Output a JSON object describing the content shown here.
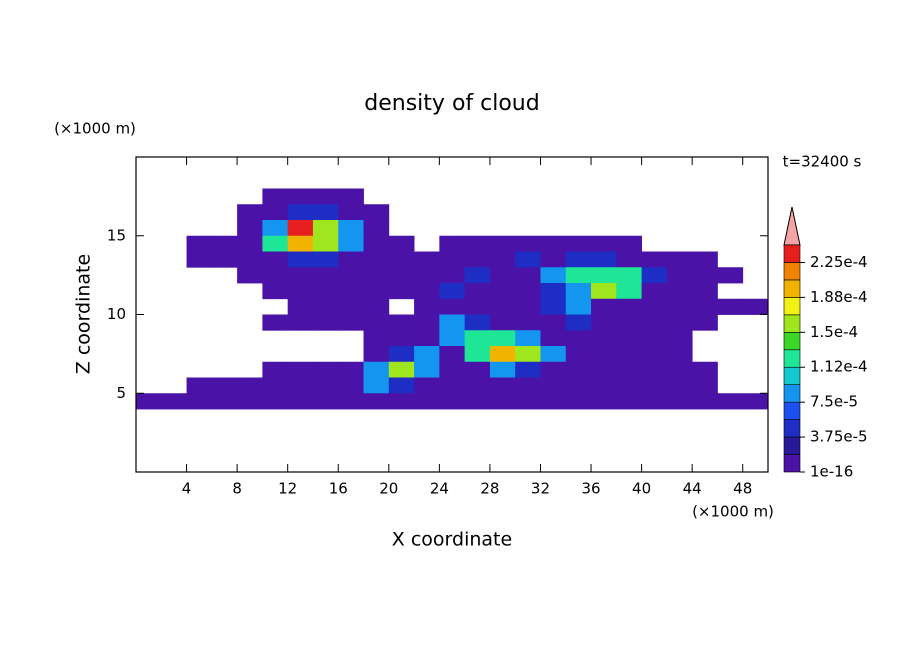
{
  "chart_data": {
    "type": "contour",
    "title": "density of cloud",
    "time_label": "t=32400 s",
    "xlabel": "X coordinate",
    "ylabel": "Z coordinate",
    "x_unit": "(×1000 m)",
    "y_unit": "(×1000 m)",
    "xlim": [
      0,
      50
    ],
    "ylim": [
      0,
      20
    ],
    "xticks": [
      4,
      8,
      12,
      16,
      20,
      24,
      28,
      32,
      36,
      40,
      44,
      48
    ],
    "yticks": [
      5,
      10,
      15
    ],
    "x": [
      1,
      3,
      5,
      7,
      9,
      11,
      13,
      15,
      17,
      19,
      21,
      23,
      25,
      27,
      29,
      31,
      33,
      35,
      37,
      39,
      41,
      43,
      45,
      47,
      49
    ],
    "z": [
      17.5,
      16.5,
      15.5,
      14.5,
      13.5,
      12.5,
      11.5,
      10.5,
      9.5,
      8.5,
      7.5,
      6.5,
      5.5,
      4.5
    ],
    "values": [
      [
        0,
        0,
        0,
        0,
        0,
        1e-05,
        1e-05,
        1e-05,
        1e-05,
        0,
        0,
        0,
        0,
        0,
        0,
        0,
        0,
        0,
        0,
        0,
        0,
        0,
        0,
        0,
        0
      ],
      [
        0,
        0,
        0,
        0,
        1e-05,
        1e-05,
        4e-05,
        4e-05,
        1e-05,
        1e-05,
        0,
        0,
        0,
        0,
        0,
        0,
        0,
        0,
        0,
        0,
        0,
        0,
        0,
        0,
        0
      ],
      [
        0,
        0,
        0,
        0,
        1e-05,
        8e-05,
        0.00023,
        0.00016,
        8e-05,
        1e-05,
        0,
        0,
        0,
        0,
        0,
        0,
        0,
        0,
        0,
        0,
        0,
        0,
        0,
        0,
        0
      ],
      [
        0,
        0,
        1e-05,
        1e-05,
        1e-05,
        0.00012,
        0.0002,
        0.00016,
        8e-05,
        1e-05,
        1e-05,
        0,
        1e-05,
        1e-05,
        1e-05,
        1e-05,
        1e-05,
        1e-05,
        1e-05,
        1e-05,
        0,
        0,
        0,
        0,
        0
      ],
      [
        0,
        0,
        1e-05,
        1e-05,
        1e-05,
        1e-05,
        4e-05,
        4e-05,
        1e-05,
        1e-05,
        1e-05,
        1e-05,
        1e-05,
        1e-05,
        1e-05,
        4e-05,
        1e-05,
        4e-05,
        4e-05,
        1e-05,
        1e-05,
        1e-05,
        1e-05,
        0,
        0
      ],
      [
        0,
        0,
        0,
        0,
        1e-05,
        1e-05,
        1e-05,
        1e-05,
        1e-05,
        1e-05,
        1e-05,
        1e-05,
        1e-05,
        4e-05,
        1e-05,
        1e-05,
        8e-05,
        0.00012,
        0.00012,
        0.00012,
        4e-05,
        1e-05,
        1e-05,
        1e-05,
        0
      ],
      [
        0,
        0,
        0,
        0,
        0,
        1e-05,
        1e-05,
        1e-05,
        1e-05,
        1e-05,
        1e-05,
        1e-05,
        4e-05,
        1e-05,
        1e-05,
        1e-05,
        4e-05,
        8e-05,
        0.00016,
        0.00012,
        1e-05,
        1e-05,
        1e-05,
        0,
        0
      ],
      [
        0,
        0,
        0,
        0,
        0,
        0,
        1e-05,
        1e-05,
        1e-05,
        1e-05,
        0,
        1e-05,
        1e-05,
        1e-05,
        1e-05,
        1e-05,
        4e-05,
        8e-05,
        1e-05,
        1e-05,
        1e-05,
        1e-05,
        1e-05,
        1e-05,
        1e-05
      ],
      [
        0,
        0,
        0,
        0,
        0,
        1e-05,
        1e-05,
        1e-05,
        1e-05,
        1e-05,
        1e-05,
        1e-05,
        8e-05,
        4e-05,
        1e-05,
        1e-05,
        1e-05,
        4e-05,
        1e-05,
        1e-05,
        1e-05,
        1e-05,
        1e-05,
        0,
        0
      ],
      [
        0,
        0,
        0,
        0,
        0,
        0,
        0,
        0,
        0,
        1e-05,
        1e-05,
        1e-05,
        8e-05,
        0.00012,
        0.00012,
        8e-05,
        1e-05,
        1e-05,
        1e-05,
        1e-05,
        1e-05,
        1e-05,
        0,
        0,
        0
      ],
      [
        0,
        0,
        0,
        0,
        0,
        0,
        0,
        0,
        0,
        1e-05,
        4e-05,
        8e-05,
        1e-05,
        0.00012,
        0.0002,
        0.00016,
        8e-05,
        1e-05,
        1e-05,
        1e-05,
        1e-05,
        1e-05,
        0,
        0,
        0
      ],
      [
        0,
        0,
        0,
        0,
        0,
        1e-05,
        1e-05,
        1e-05,
        1e-05,
        8e-05,
        0.00016,
        8e-05,
        1e-05,
        1e-05,
        8e-05,
        4e-05,
        1e-05,
        1e-05,
        1e-05,
        1e-05,
        1e-05,
        1e-05,
        1e-05,
        0,
        0
      ],
      [
        0,
        0,
        1e-05,
        1e-05,
        1e-05,
        1e-05,
        1e-05,
        1e-05,
        1e-05,
        8e-05,
        4e-05,
        1e-05,
        1e-05,
        1e-05,
        1e-05,
        1e-05,
        1e-05,
        1e-05,
        1e-05,
        1e-05,
        1e-05,
        1e-05,
        1e-05,
        0,
        0
      ],
      [
        1e-05,
        1e-05,
        1e-05,
        1e-05,
        1e-05,
        1e-05,
        1e-05,
        1e-05,
        1e-05,
        1e-05,
        1e-05,
        1e-05,
        1e-05,
        1e-05,
        1e-05,
        1e-05,
        1e-05,
        1e-05,
        1e-05,
        1e-05,
        1e-05,
        1e-05,
        1e-05,
        1e-05,
        1e-05
      ]
    ],
    "colorbar": {
      "levels": [
        1e-16,
        1.875e-05,
        3.75e-05,
        5.625e-05,
        7.5e-05,
        9.375e-05,
        0.0001125,
        0.00013125,
        0.00015,
        0.00016875,
        0.0001875,
        0.00020625,
        0.000225,
        0.00024375
      ],
      "colors": [
        "#4a12a6",
        "#28189a",
        "#1e2ec4",
        "#1e50f0",
        "#1496f0",
        "#14c8d2",
        "#1ee696",
        "#3cd828",
        "#a0e61e",
        "#f0f014",
        "#f0b400",
        "#f08200",
        "#e61e1e"
      ],
      "extend_color": "#f4a4a4",
      "ticks": [
        {
          "value": 1e-16,
          "label": "1e-16"
        },
        {
          "value": 3.75e-05,
          "label": "3.75e-5"
        },
        {
          "value": 7.5e-05,
          "label": "7.5e-5"
        },
        {
          "value": 0.0001125,
          "label": "1.12e-4"
        },
        {
          "value": 0.00015,
          "label": "1.5e-4"
        },
        {
          "value": 0.0001875,
          "label": "1.88e-4"
        },
        {
          "value": 0.000225,
          "label": "2.25e-4"
        }
      ]
    }
  }
}
